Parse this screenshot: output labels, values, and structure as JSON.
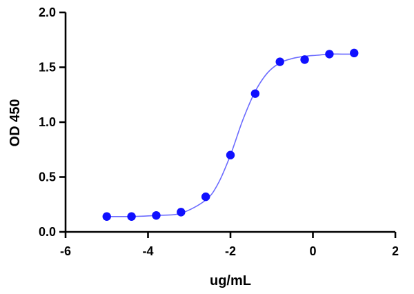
{
  "chart_data": {
    "type": "scatter",
    "title": "",
    "xlabel": "ug/mL",
    "ylabel": "OD 450",
    "xlim": [
      -6,
      2
    ],
    "ylim": [
      0,
      2
    ],
    "x_ticks": [
      -6,
      -4,
      -2,
      0,
      2
    ],
    "x_tick_labels": [
      "-6",
      "-4",
      "-2",
      "0",
      "2"
    ],
    "y_ticks": [
      0,
      0.5,
      1,
      1.5,
      2
    ],
    "y_tick_labels": [
      "0.0",
      "0.5",
      "1.0",
      "1.5",
      "2.0"
    ],
    "grid": false,
    "colors": {
      "points": "#1010ff",
      "curve": "#6b6bff",
      "axes": "#000000"
    },
    "series": [
      {
        "x": [
          -5.0,
          -4.4,
          -3.8,
          -3.2,
          -2.6,
          -2.0,
          -1.4,
          -0.8,
          -0.2,
          0.4,
          1.0
        ],
        "y": [
          0.14,
          0.14,
          0.15,
          0.18,
          0.32,
          0.7,
          1.26,
          1.55,
          1.57,
          1.62,
          1.63
        ]
      }
    ],
    "fit_curve": {
      "x": [
        -5.0,
        -4.4,
        -3.8,
        -3.2,
        -2.6,
        -2.3,
        -2.0,
        -1.7,
        -1.4,
        -1.1,
        -0.8,
        -0.5,
        -0.2,
        0.1,
        0.4,
        0.7,
        1.0
      ],
      "y": [
        0.14,
        0.14,
        0.15,
        0.17,
        0.29,
        0.44,
        0.7,
        1.02,
        1.28,
        1.45,
        1.54,
        1.58,
        1.6,
        1.61,
        1.62,
        1.62,
        1.62
      ]
    }
  }
}
